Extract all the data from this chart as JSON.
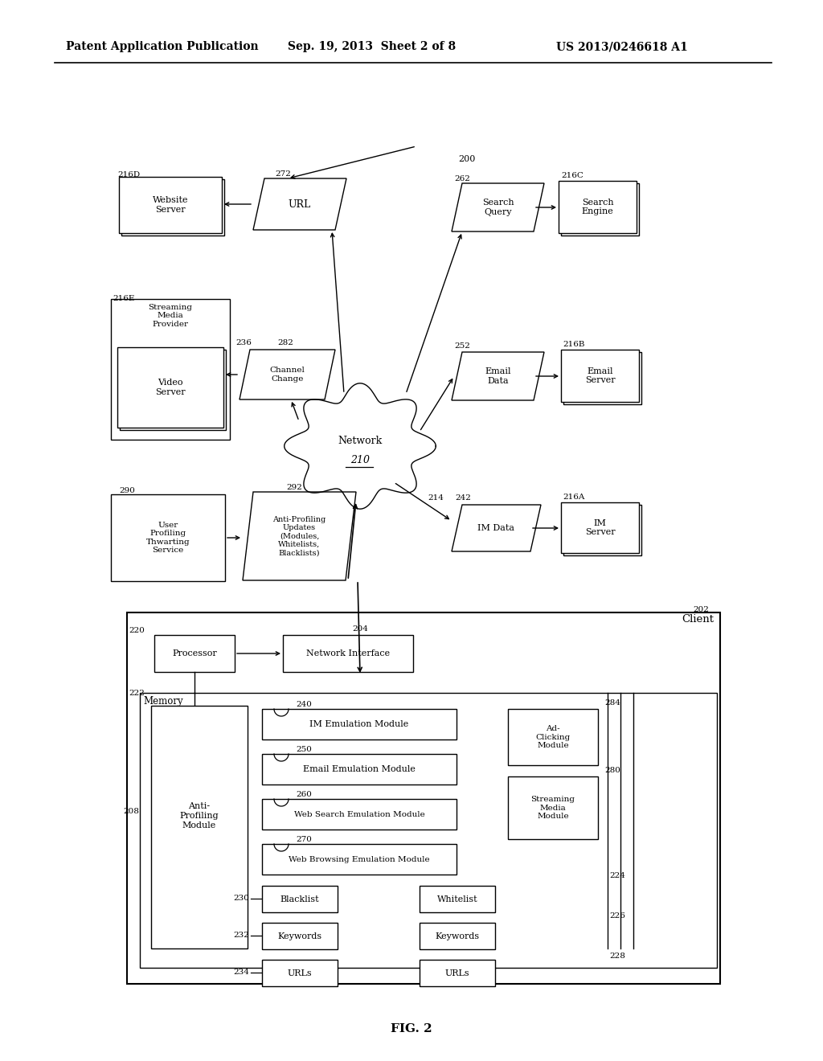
{
  "bg_color": "#ffffff",
  "header_left": "Patent Application Publication",
  "header_center": "Sep. 19, 2013  Sheet 2 of 8",
  "header_right": "US 2013/0246618 A1",
  "footer": "FIG. 2"
}
